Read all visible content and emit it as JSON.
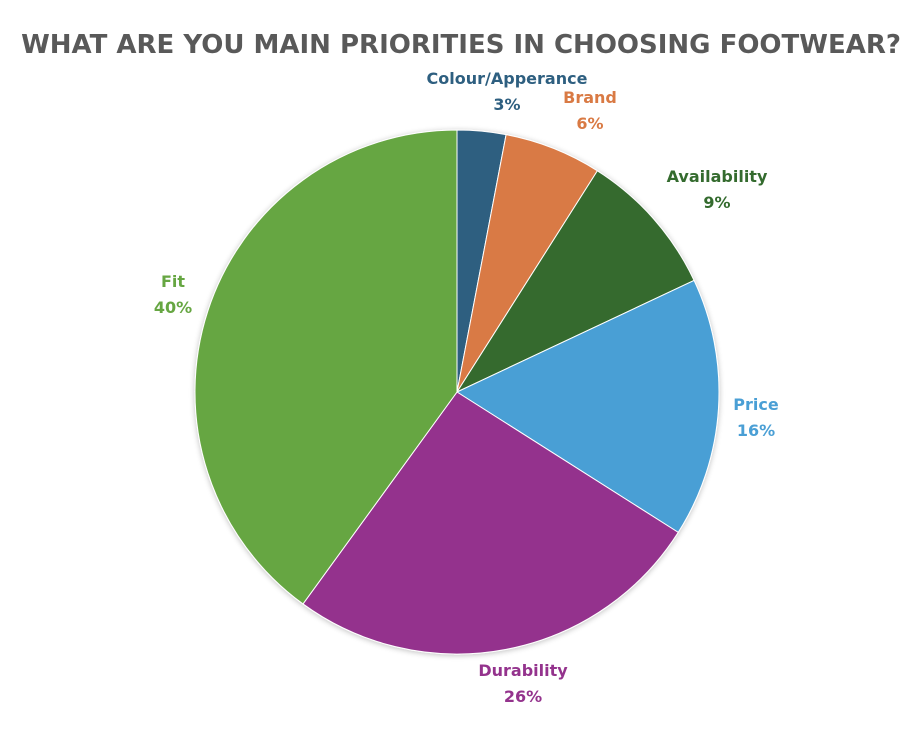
{
  "chart_data": {
    "type": "pie",
    "title": "WHAT ARE YOU MAIN PRIORITIES IN CHOOSING FOOTWEAR?",
    "slices": [
      {
        "label": "Colour/Apperance",
        "value": 3,
        "value_label": "3%",
        "color": "#2E5F80"
      },
      {
        "label": "Brand",
        "value": 6,
        "value_label": "6%",
        "color": "#D97A44"
      },
      {
        "label": "Availability",
        "value": 9,
        "value_label": "9%",
        "color": "#346B2E"
      },
      {
        "label": "Price",
        "value": 16,
        "value_label": "16%",
        "color": "#4A9FD5"
      },
      {
        "label": "Durability",
        "value": 26,
        "value_label": "26%",
        "color": "#94338D"
      },
      {
        "label": "Fit",
        "value": 40,
        "value_label": "40%",
        "color": "#66A642"
      }
    ],
    "start_angle": "12 o'clock",
    "direction": "clockwise",
    "legend": "none"
  }
}
